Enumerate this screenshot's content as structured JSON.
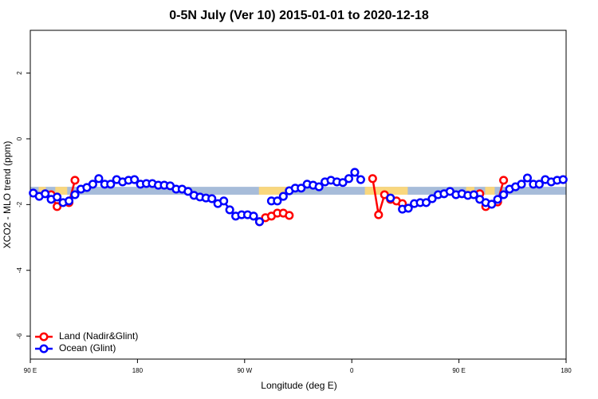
{
  "chart_data": {
    "type": "line",
    "title": "0-5N July (Ver 10)   2015-01-01 to 2020-12-18",
    "x_label": "Longitude (deg E)",
    "y_label": "XCO2 - MLO trend (ppm)",
    "xlim": [
      90,
      540
    ],
    "xticks": [
      {
        "value": 90,
        "label": "90 E"
      },
      180,
      {
        "value": 270,
        "label": "90 W"
      },
      {
        "value": 360,
        "label": "0"
      },
      {
        "value": 450,
        "label": "90 E"
      },
      {
        "value": 540,
        "label": "180"
      }
    ],
    "ylim": [
      -6.7,
      3.3
    ],
    "yticks": [
      -6,
      -4,
      -2,
      0,
      2
    ],
    "legend": "bottom-left",
    "band": {
      "ymin": -1.7,
      "ymax": -1.46,
      "ocean_color": "#a7bcd9",
      "land_color": "#f9d77e",
      "land_spans": [
        [
          97,
          103
        ],
        [
          111,
          121
        ],
        [
          282,
          309
        ],
        [
          371,
          407
        ],
        [
          456,
          463
        ],
        [
          472,
          480
        ]
      ]
    },
    "series": [
      {
        "name": "Land (Nadir&Glint)",
        "color": "#ff0000",
        "x": [
          107.5,
          112.5,
          117.5,
          122.5,
          127.5,
          195,
          282.5,
          287.5,
          292.5,
          297.5,
          302.5,
          307.5,
          340,
          377.5,
          382.5,
          387.5,
          392.5,
          397.5,
          402.5,
          435,
          467.5,
          472.5,
          477.5,
          482.5,
          487.5
        ],
        "values": [
          -1.7,
          -2.06,
          null,
          -1.94,
          -1.26,
          null,
          -2.52,
          -2.4,
          -2.35,
          -2.26,
          -2.26,
          -2.33,
          null,
          -1.21,
          -2.31,
          -1.7,
          -1.84,
          -1.89,
          -1.97,
          null,
          -1.67,
          -2.06,
          null,
          -1.92,
          -1.26
        ]
      },
      {
        "name": "Ocean (Glint)",
        "color": "#0000ff",
        "x": [
          92.5,
          97.5,
          102.5,
          107.5,
          112.5,
          117.5,
          122.5,
          127.5,
          132.5,
          137.5,
          142.5,
          147.5,
          152.5,
          157.5,
          162.5,
          167.5,
          172.5,
          177.5,
          182.5,
          187.5,
          192.5,
          197.5,
          202.5,
          207.5,
          212.5,
          217.5,
          222.5,
          227.5,
          232.5,
          237.5,
          242.5,
          247.5,
          252.5,
          257.5,
          262.5,
          267.5,
          272.5,
          277.5,
          282.5,
          287.5,
          292.5,
          297.5,
          302.5,
          307.5,
          312.5,
          317.5,
          322.5,
          327.5,
          332.5,
          337.5,
          342.5,
          347.5,
          352.5,
          357.5,
          362.5,
          367.5,
          372.5,
          392.5,
          397.5,
          402.5,
          407.5,
          412.5,
          417.5,
          422.5,
          427.5,
          432.5,
          437.5,
          442.5,
          447.5,
          452.5,
          457.5,
          462.5,
          467.5,
          472.5,
          477.5,
          482.5,
          487.5,
          492.5,
          497.5,
          502.5,
          507.5,
          512.5,
          517.5,
          522.5,
          527.5,
          532.5,
          537.5
        ],
        "values": [
          -1.65,
          -1.75,
          -1.67,
          -1.84,
          -1.77,
          -1.94,
          -1.89,
          -1.7,
          -1.53,
          -1.48,
          -1.38,
          -1.21,
          -1.38,
          -1.38,
          -1.24,
          -1.31,
          -1.26,
          -1.24,
          -1.38,
          -1.36,
          -1.36,
          -1.41,
          -1.41,
          -1.43,
          -1.53,
          -1.53,
          -1.6,
          -1.72,
          -1.77,
          -1.8,
          -1.82,
          -1.97,
          -1.89,
          -2.16,
          -2.35,
          -2.31,
          -2.31,
          -2.35,
          -2.52,
          null,
          -1.89,
          -1.89,
          -1.75,
          -1.58,
          -1.5,
          -1.5,
          -1.38,
          -1.41,
          -1.46,
          -1.31,
          -1.26,
          -1.31,
          -1.33,
          -1.21,
          -1.02,
          -1.24,
          null,
          -1.8,
          null,
          -2.14,
          -2.11,
          -1.97,
          -1.94,
          -1.94,
          -1.82,
          -1.7,
          -1.67,
          -1.6,
          -1.7,
          -1.67,
          -1.72,
          -1.7,
          -1.84,
          -1.94,
          -1.99,
          -1.84,
          -1.7,
          -1.53,
          -1.46,
          -1.38,
          -1.19,
          -1.38,
          -1.38,
          -1.24,
          -1.31,
          -1.26,
          -1.24
        ]
      }
    ]
  }
}
